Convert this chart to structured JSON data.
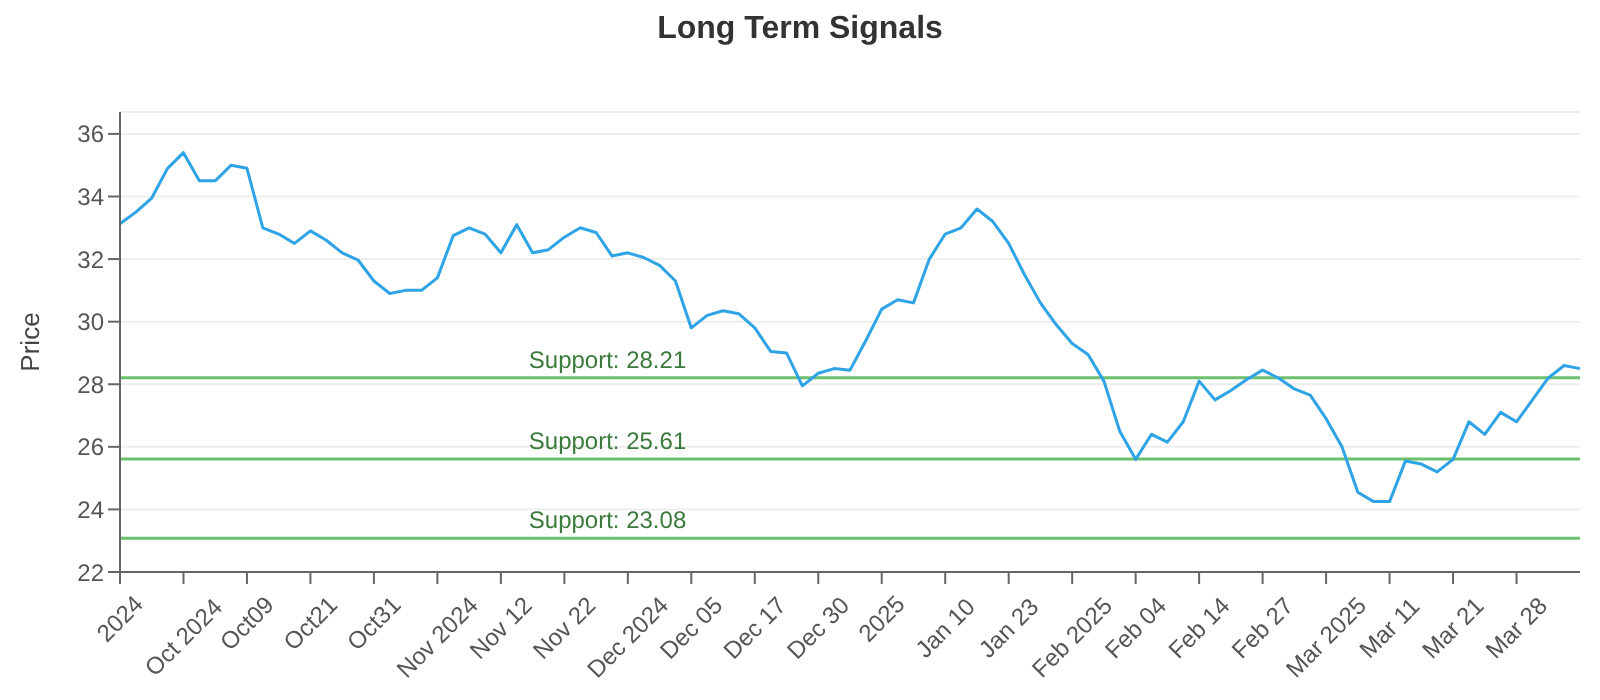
{
  "chart_data": {
    "type": "line",
    "title": "Long Term Signals",
    "ylabel": "Price",
    "categories": [
      "2024",
      null,
      null,
      null,
      "Oct 2024",
      null,
      null,
      null,
      "Oct09",
      null,
      null,
      null,
      "Oct21",
      null,
      null,
      null,
      "Oct31",
      null,
      null,
      null,
      "Nov 2024",
      null,
      null,
      null,
      "Nov 12",
      null,
      null,
      null,
      "Nov 22",
      null,
      null,
      null,
      "Dec 2024",
      null,
      null,
      null,
      "Dec 05",
      null,
      null,
      null,
      "Dec 17",
      null,
      null,
      null,
      "Dec 30",
      null,
      null,
      null,
      "2025",
      null,
      null,
      null,
      "Jan 10",
      null,
      null,
      null,
      "Jan 23",
      null,
      null,
      null,
      "Feb 2025",
      null,
      null,
      null,
      "Feb 04",
      null,
      null,
      null,
      "Feb 14",
      null,
      null,
      null,
      "Feb 27",
      null,
      null,
      null,
      "Mar 2025",
      null,
      null,
      null,
      "Mar 11",
      null,
      null,
      null,
      "Mar 21",
      null,
      null,
      null,
      "Mar 28",
      null,
      null,
      null,
      null
    ],
    "series": [
      {
        "color": "#2ea4e6",
        "values": [
          33.13,
          33.5,
          33.95,
          34.9,
          35.4,
          34.5,
          34.5,
          35.0,
          34.9,
          33.0,
          32.8,
          32.5,
          32.9,
          32.6,
          32.2,
          31.97,
          31.3,
          30.9,
          31.0,
          31.0,
          31.4,
          32.75,
          33.0,
          32.8,
          32.2,
          33.1,
          32.2,
          32.3,
          32.7,
          33.0,
          32.85,
          32.1,
          32.2,
          32.05,
          31.8,
          31.3,
          29.8,
          30.2,
          30.35,
          30.25,
          29.8,
          29.05,
          29.0,
          27.95,
          28.35,
          28.5,
          28.45,
          29.4,
          30.4,
          30.7,
          30.6,
          32.0,
          32.8,
          33.0,
          33.6,
          33.2,
          32.5,
          31.5,
          30.6,
          29.9,
          29.3,
          28.95,
          28.1,
          26.5,
          25.6,
          26.4,
          26.15,
          26.8,
          28.1,
          27.5,
          27.8,
          28.15,
          28.45,
          28.2,
          27.85,
          27.65,
          26.9,
          26.0,
          24.55,
          24.25,
          24.25,
          25.55,
          25.45,
          25.2,
          25.6,
          26.8,
          26.4,
          27.1,
          26.8,
          27.5,
          28.2,
          28.6,
          28.5
        ]
      }
    ],
    "ylim": [
      22,
      36.7
    ],
    "yticks": [
      22,
      24,
      26,
      28,
      30,
      32,
      34,
      36
    ],
    "grid": "y",
    "marker": "none",
    "line_style": "solid",
    "legend": false,
    "ref_lines": [
      {
        "axis": "y",
        "value": 28.21,
        "label": "Support: 28.21",
        "color": "#6cbf6c"
      },
      {
        "axis": "y",
        "value": 25.61,
        "label": "Support: 25.61",
        "color": "#6cbf6c"
      },
      {
        "axis": "y",
        "value": 23.08,
        "label": "Support: 23.08",
        "color": "#6cbf6c"
      }
    ]
  }
}
